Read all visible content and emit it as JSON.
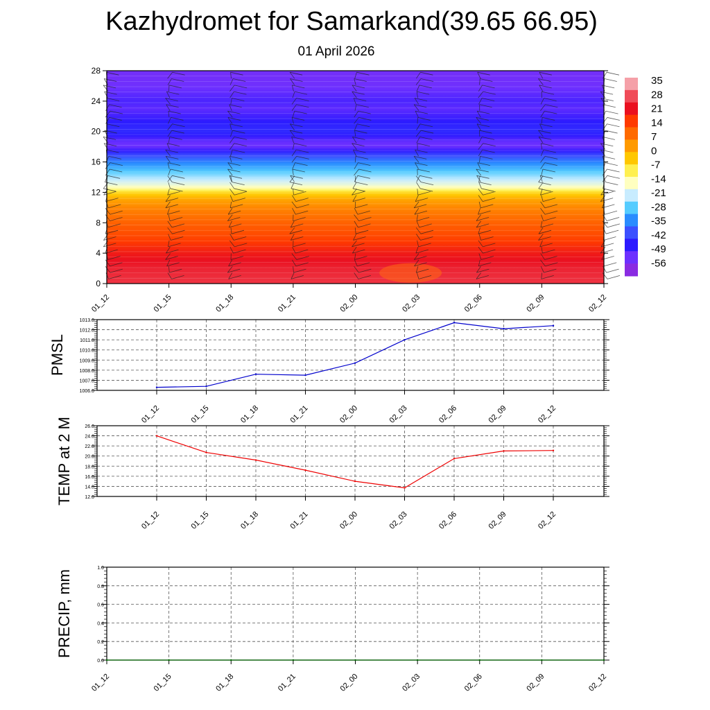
{
  "title": "Kazhydromet for Samarkand(39.65 66.95)",
  "date": "01 April 2026",
  "time_labels": [
    "01_12",
    "01_15",
    "01_18",
    "01_21",
    "02_00",
    "02_03",
    "02_06",
    "02_09",
    "02_12"
  ],
  "chart_data": [
    {
      "type": "heatmap",
      "title": "Temperature cross-section with wind barbs",
      "x": [
        "01_12",
        "01_15",
        "01_18",
        "01_21",
        "02_00",
        "02_03",
        "02_06",
        "02_09",
        "02_12"
      ],
      "ylim": [
        0,
        28
      ],
      "y_ticks": [
        0,
        4,
        8,
        12,
        16,
        20,
        24,
        28
      ],
      "y_profile": [
        0,
        2,
        4,
        6,
        8,
        10,
        11,
        12,
        12.4,
        13,
        14,
        15,
        16,
        17,
        17.6,
        18,
        18.6,
        19.5,
        20,
        21,
        22,
        23,
        24,
        26,
        28
      ],
      "temperature_profile": [
        26,
        24,
        20,
        14,
        10,
        5,
        1,
        -7,
        -14,
        -20,
        -26,
        -32,
        -38,
        -45,
        -52,
        -56,
        -56,
        -50,
        -48,
        -49,
        -52,
        -55,
        -53,
        -57,
        -58
      ],
      "colorbar": {
        "labels": [
          "35",
          "28",
          "21",
          "14",
          "7",
          "0",
          "-7",
          "-14",
          "-21",
          "-28",
          "-35",
          "-42",
          "-49",
          "-56"
        ],
        "colors": [
          "#f5a0a8",
          "#f04b58",
          "#ea1020",
          "#ff3a00",
          "#ff6a00",
          "#ff9a00",
          "#ffc700",
          "#fff050",
          "#ffffc0",
          "#c8ecff",
          "#55ccff",
          "#2a8cff",
          "#3c50ff",
          "#2c1aff",
          "#6d30ff",
          "#8a2be2"
        ]
      }
    },
    {
      "type": "line",
      "ylabel": "PMSL",
      "x": [
        "01_12",
        "01_15",
        "01_18",
        "01_21",
        "02_00",
        "02_03",
        "02_06",
        "02_09",
        "02_12"
      ],
      "values": [
        1006.3,
        1006.4,
        1007.6,
        1007.5,
        1008.7,
        1011.0,
        1012.7,
        1012.1,
        1012.4
      ],
      "ylim": [
        1006.0,
        1013.0
      ],
      "y_ticks": [
        "1006.0",
        "1007.0",
        "1008.0",
        "1009.0",
        "1010.0",
        "1011.0",
        "1012.0",
        "1013.0"
      ],
      "color": "#0000cc"
    },
    {
      "type": "line",
      "ylabel": "TEMP at 2 M",
      "x": [
        "01_12",
        "01_15",
        "01_18",
        "01_21",
        "02_00",
        "02_03",
        "02_06",
        "02_09",
        "02_12"
      ],
      "values": [
        24.0,
        20.7,
        19.2,
        17.2,
        15.0,
        13.7,
        19.5,
        21.0,
        21.1
      ],
      "ylim": [
        12.0,
        26.0
      ],
      "y_ticks": [
        "12.0",
        "14.0",
        "16.0",
        "18.0",
        "20.0",
        "22.0",
        "24.0",
        "26.0"
      ],
      "color": "#ee0000"
    },
    {
      "type": "line",
      "ylabel": "PRECIP, mm",
      "x": [
        "01_12",
        "01_15",
        "01_18",
        "01_21",
        "02_00",
        "02_03",
        "02_06",
        "02_09",
        "02_12"
      ],
      "values": [
        0,
        0,
        0,
        0,
        0,
        0,
        0,
        0,
        0
      ],
      "ylim": [
        0,
        1
      ],
      "y_ticks": [
        "0.0",
        "0.2",
        "0.4",
        "0.6",
        "0.8",
        "1.0"
      ],
      "color": "#006600"
    }
  ]
}
